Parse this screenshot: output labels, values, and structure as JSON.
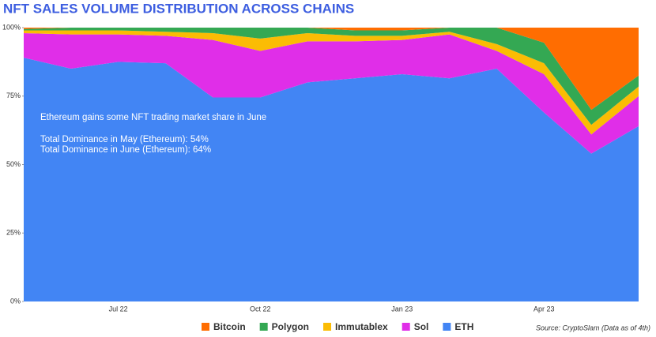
{
  "chart_data": {
    "type": "stacked_area",
    "title": "NFT SALES VOLUME DISTRIBUTION ACROSS CHAINS",
    "annotations": [
      "Ethereum gains some NFT trading market share in June",
      "Total Dominance in May (Ethereum): 54%",
      "Total Dominance in June (Ethereum): 64%"
    ],
    "source": "Source: CryptoSlam (Data as of 4th)",
    "categories": [
      null,
      null,
      "Jul 22",
      null,
      null,
      "Oct 22",
      null,
      null,
      "Jan 23",
      null,
      null,
      "Apr 23",
      null,
      null
    ],
    "series": [
      {
        "name": "Bitcoin",
        "color": "#ff6d01",
        "values": [
          0.5,
          0,
          0,
          0,
          0,
          0,
          0,
          1,
          1,
          0,
          0,
          5.5,
          30,
          17.5
        ]
      },
      {
        "name": "Polygon",
        "color": "#34a853",
        "values": [
          0.5,
          1,
          1,
          1.5,
          2,
          4,
          2,
          2,
          2,
          1.5,
          6,
          7.5,
          5.5,
          4
        ]
      },
      {
        "name": "Immutablex",
        "color": "#fbbc04",
        "values": [
          1,
          1.5,
          1.5,
          1.5,
          2.5,
          4.5,
          3,
          2,
          1.5,
          1,
          2.5,
          4,
          3.5,
          3.5
        ]
      },
      {
        "name": "Sol",
        "color": "#e02ee8",
        "values": [
          9,
          12.5,
          10,
          10,
          21,
          17,
          15,
          13.5,
          12.5,
          16,
          6.5,
          14,
          7,
          11
        ]
      },
      {
        "name": "ETH",
        "color": "#4285f4",
        "values": [
          89,
          85,
          87.5,
          87,
          74.5,
          74.5,
          80,
          81.5,
          83,
          81.5,
          85,
          69,
          54,
          64
        ]
      }
    ],
    "ylim": [
      0,
      100
    ],
    "yticks": [
      {
        "value": 0,
        "label": "0%"
      },
      {
        "value": 25,
        "label": "25%"
      },
      {
        "value": 50,
        "label": "50%"
      },
      {
        "value": 75,
        "label": "75%"
      },
      {
        "value": 100,
        "label": "100%"
      }
    ]
  }
}
